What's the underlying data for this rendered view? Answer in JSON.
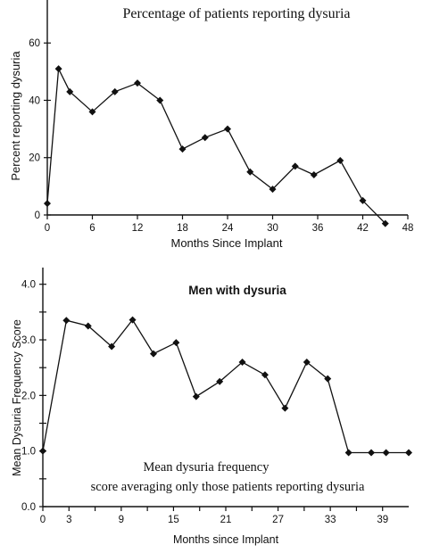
{
  "chart_data": [
    {
      "type": "line",
      "title": "Percentage of patients reporting dysuria",
      "xlabel": "Months Since Implant",
      "ylabel": "Percent reporting dysuria",
      "xlim": [
        0,
        48
      ],
      "ylim": [
        0,
        75
      ],
      "x_ticks": [
        0,
        6,
        12,
        18,
        24,
        30,
        36,
        42,
        48
      ],
      "x_tick_labels": [
        "0",
        "6",
        "12",
        "18",
        "24",
        "30",
        "36",
        "42",
        "48"
      ],
      "y_ticks": [
        0,
        20,
        40,
        60
      ],
      "y_tick_labels": [
        "0",
        "20",
        "40",
        "60"
      ],
      "grid": false,
      "marker": "diamond",
      "series": [
        {
          "x": [
            0,
            1.5,
            3,
            6,
            9,
            12,
            15,
            18,
            21,
            24,
            27,
            30,
            33,
            35.5,
            39,
            42,
            45
          ],
          "values": [
            4,
            51,
            43,
            36,
            43,
            46,
            40,
            23,
            27,
            30,
            15,
            9,
            17,
            14,
            19,
            5,
            -3
          ]
        }
      ]
    },
    {
      "type": "line",
      "title": "Men with dysuria",
      "xlabel": "Months since Implant",
      "ylabel": "Mean Dysuria Frequency Score",
      "xlim": [
        0,
        42
      ],
      "ylim": [
        0,
        4.3
      ],
      "x_ticks": [
        0,
        3,
        6,
        9,
        12,
        15,
        18,
        21,
        24,
        27,
        30,
        33,
        36,
        39
      ],
      "x_tick_labels": [
        "0",
        "3",
        "",
        "9",
        "",
        "15",
        "",
        "21",
        "",
        "27",
        "",
        "33",
        "",
        "39"
      ],
      "y_ticks": [
        0,
        0.5,
        1,
        1.5,
        2,
        2.5,
        3,
        3.5,
        4
      ],
      "y_tick_labels": [
        "0.0",
        "",
        "1.0",
        "",
        "2.0",
        "",
        "3.0",
        "",
        "4.0"
      ],
      "grid": false,
      "marker": "diamond",
      "annotation": [
        "Mean dysuria frequency",
        "score averaging only those patients reporting dysuria"
      ],
      "series": [
        {
          "x": [
            0,
            2.7,
            5.2,
            7.9,
            10.3,
            12.7,
            15.3,
            17.6,
            20.3,
            22.9,
            25.5,
            27.8,
            30.3,
            32.7,
            35.1,
            37.7,
            39.4,
            42
          ],
          "values": [
            1.0,
            3.35,
            3.25,
            2.88,
            3.36,
            2.75,
            2.95,
            1.98,
            2.25,
            2.6,
            2.37,
            1.77,
            2.6,
            2.3,
            0.97,
            0.97,
            0.97,
            0.97
          ]
        }
      ]
    }
  ]
}
